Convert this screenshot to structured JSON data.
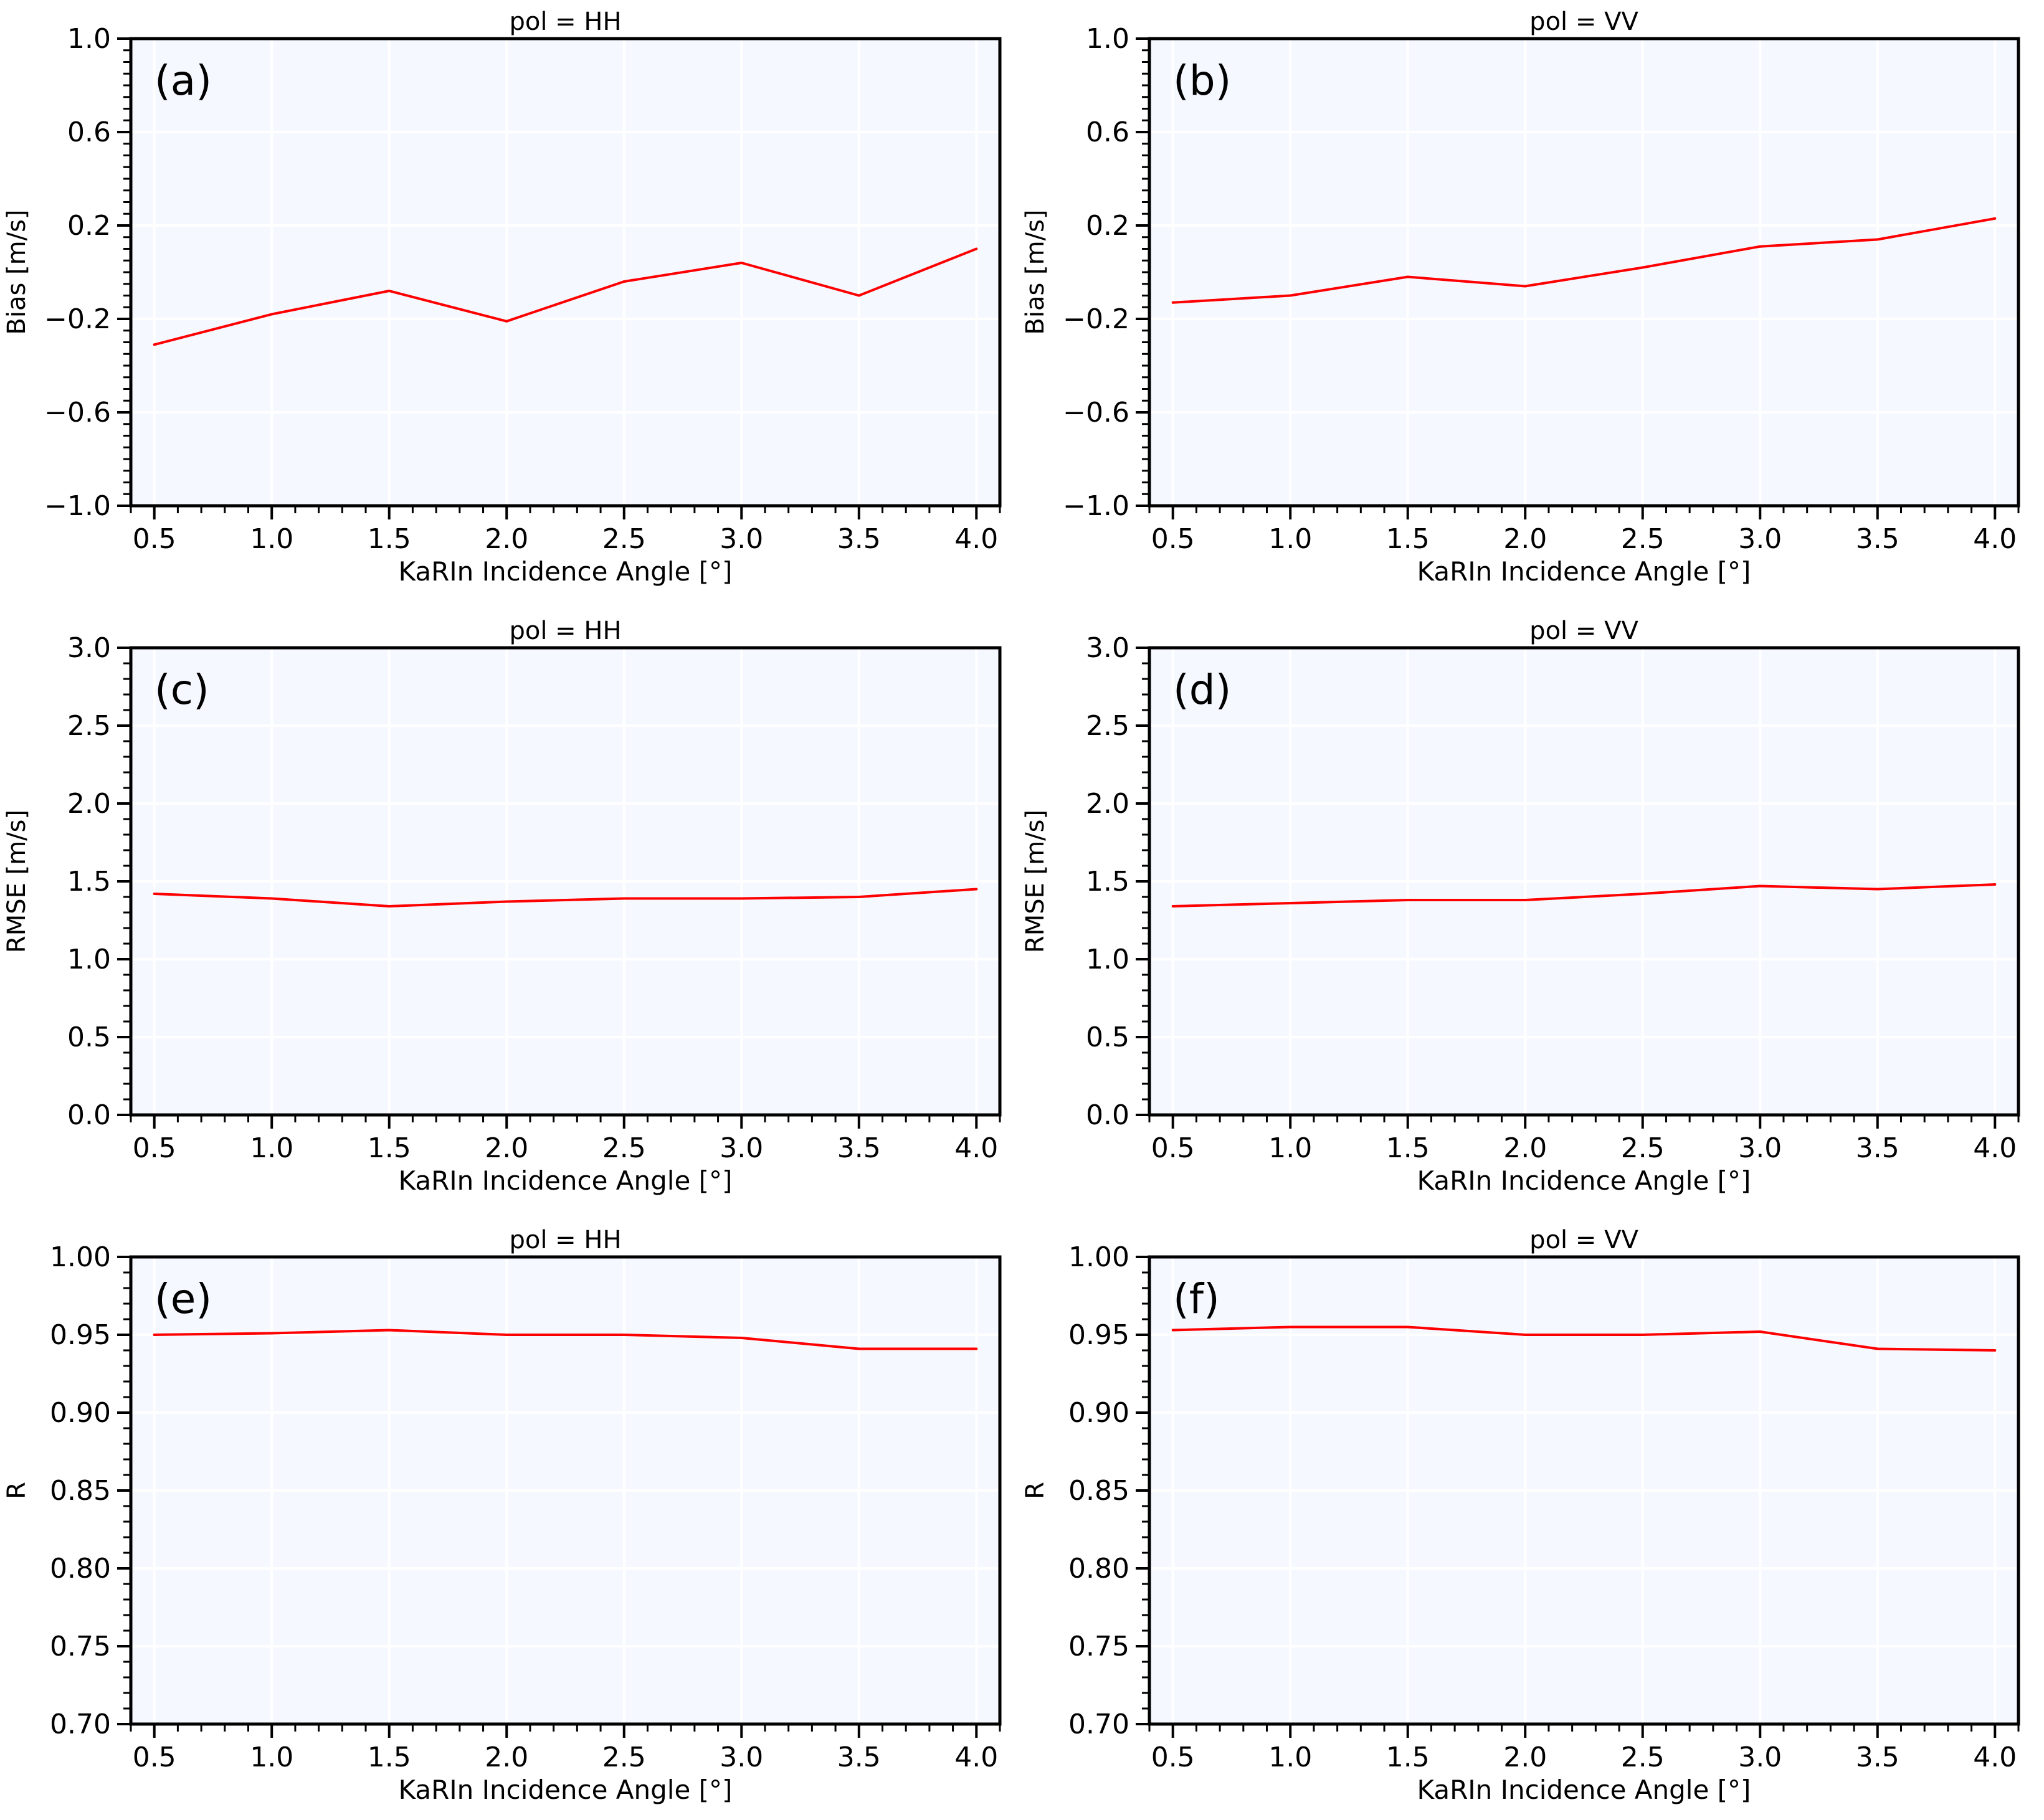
{
  "figure": {
    "background": "#ffffff",
    "axes_facecolor": "#f5f8ff",
    "grid_color": "#ffffff",
    "line_color": "#ff0000"
  },
  "chart_data": [
    {
      "type": "line",
      "panel": "(a)",
      "title": "pol = HH",
      "xlabel": "KaRIn Incidence Angle [°]",
      "ylabel": "Bias [m/s]",
      "xlim": [
        0.4,
        4.1
      ],
      "ylim": [
        -1.0,
        1.0
      ],
      "grid": true,
      "xticks": [
        0.5,
        1.0,
        1.5,
        2.0,
        2.5,
        3.0,
        3.5,
        4.0
      ],
      "xtick_labels": [
        "0.5",
        "1.0",
        "1.5",
        "2.0",
        "2.5",
        "3.0",
        "3.5",
        "4.0"
      ],
      "yticks": [
        -1.0,
        -0.6,
        -0.2,
        0.2,
        0.6,
        1.0
      ],
      "ytick_labels": [
        "−1.0",
        "−0.6",
        "−0.2",
        "0.2",
        "0.6",
        "1.0"
      ],
      "yminor_step": 0.05,
      "series": [
        {
          "color": "#ff0000",
          "x": [
            0.5,
            1.0,
            1.5,
            2.0,
            2.5,
            3.0,
            3.5,
            4.0
          ],
          "y": [
            -0.31,
            -0.18,
            -0.08,
            -0.21,
            -0.04,
            0.04,
            -0.1,
            0.1
          ]
        }
      ]
    },
    {
      "type": "line",
      "panel": "(b)",
      "title": "pol = VV",
      "xlabel": "KaRIn Incidence Angle [°]",
      "ylabel": "Bias [m/s]",
      "xlim": [
        0.4,
        4.1
      ],
      "ylim": [
        -1.0,
        1.0
      ],
      "grid": true,
      "xticks": [
        0.5,
        1.0,
        1.5,
        2.0,
        2.5,
        3.0,
        3.5,
        4.0
      ],
      "xtick_labels": [
        "0.5",
        "1.0",
        "1.5",
        "2.0",
        "2.5",
        "3.0",
        "3.5",
        "4.0"
      ],
      "yticks": [
        -1.0,
        -0.6,
        -0.2,
        0.2,
        0.6,
        1.0
      ],
      "ytick_labels": [
        "−1.0",
        "−0.6",
        "−0.2",
        "0.2",
        "0.6",
        "1.0"
      ],
      "yminor_step": 0.05,
      "series": [
        {
          "color": "#ff0000",
          "x": [
            0.5,
            1.0,
            1.5,
            2.0,
            2.5,
            3.0,
            3.5,
            4.0
          ],
          "y": [
            -0.13,
            -0.1,
            -0.02,
            -0.06,
            0.02,
            0.11,
            0.14,
            0.23
          ]
        }
      ]
    },
    {
      "type": "line",
      "panel": "(c)",
      "title": "pol = HH",
      "xlabel": "KaRIn Incidence Angle [°]",
      "ylabel": "RMSE [m/s]",
      "xlim": [
        0.4,
        4.1
      ],
      "ylim": [
        0.0,
        3.0
      ],
      "grid": true,
      "xticks": [
        0.5,
        1.0,
        1.5,
        2.0,
        2.5,
        3.0,
        3.5,
        4.0
      ],
      "xtick_labels": [
        "0.5",
        "1.0",
        "1.5",
        "2.0",
        "2.5",
        "3.0",
        "3.5",
        "4.0"
      ],
      "yticks": [
        0.0,
        0.5,
        1.0,
        1.5,
        2.0,
        2.5,
        3.0
      ],
      "ytick_labels": [
        "0.0",
        "0.5",
        "1.0",
        "1.5",
        "2.0",
        "2.5",
        "3.0"
      ],
      "yminor_step": 0.1,
      "series": [
        {
          "color": "#ff0000",
          "x": [
            0.5,
            1.0,
            1.5,
            2.0,
            2.5,
            3.0,
            3.5,
            4.0
          ],
          "y": [
            1.42,
            1.39,
            1.34,
            1.37,
            1.39,
            1.39,
            1.4,
            1.45
          ]
        }
      ]
    },
    {
      "type": "line",
      "panel": "(d)",
      "title": "pol = VV",
      "xlabel": "KaRIn Incidence Angle [°]",
      "ylabel": "RMSE [m/s]",
      "xlim": [
        0.4,
        4.1
      ],
      "ylim": [
        0.0,
        3.0
      ],
      "grid": true,
      "xticks": [
        0.5,
        1.0,
        1.5,
        2.0,
        2.5,
        3.0,
        3.5,
        4.0
      ],
      "xtick_labels": [
        "0.5",
        "1.0",
        "1.5",
        "2.0",
        "2.5",
        "3.0",
        "3.5",
        "4.0"
      ],
      "yticks": [
        0.0,
        0.5,
        1.0,
        1.5,
        2.0,
        2.5,
        3.0
      ],
      "ytick_labels": [
        "0.0",
        "0.5",
        "1.0",
        "1.5",
        "2.0",
        "2.5",
        "3.0"
      ],
      "yminor_step": 0.1,
      "series": [
        {
          "color": "#ff0000",
          "x": [
            0.5,
            1.0,
            1.5,
            2.0,
            2.5,
            3.0,
            3.5,
            4.0
          ],
          "y": [
            1.34,
            1.36,
            1.38,
            1.38,
            1.42,
            1.47,
            1.45,
            1.48
          ]
        }
      ]
    },
    {
      "type": "line",
      "panel": "(e)",
      "title": "pol = HH",
      "xlabel": "KaRIn Incidence Angle [°]",
      "ylabel": "R",
      "xlim": [
        0.4,
        4.1
      ],
      "ylim": [
        0.7,
        1.0
      ],
      "grid": true,
      "xticks": [
        0.5,
        1.0,
        1.5,
        2.0,
        2.5,
        3.0,
        3.5,
        4.0
      ],
      "xtick_labels": [
        "0.5",
        "1.0",
        "1.5",
        "2.0",
        "2.5",
        "3.0",
        "3.5",
        "4.0"
      ],
      "yticks": [
        0.7,
        0.75,
        0.8,
        0.85,
        0.9,
        0.95,
        1.0
      ],
      "ytick_labels": [
        "0.70",
        "0.75",
        "0.80",
        "0.85",
        "0.90",
        "0.95",
        "1.00"
      ],
      "yminor_step": 0.01,
      "series": [
        {
          "color": "#ff0000",
          "x": [
            0.5,
            1.0,
            1.5,
            2.0,
            2.5,
            3.0,
            3.5,
            4.0
          ],
          "y": [
            0.95,
            0.951,
            0.953,
            0.95,
            0.95,
            0.948,
            0.941,
            0.941
          ]
        }
      ]
    },
    {
      "type": "line",
      "panel": "(f)",
      "title": "pol = VV",
      "xlabel": "KaRIn Incidence Angle [°]",
      "ylabel": "R",
      "xlim": [
        0.4,
        4.1
      ],
      "ylim": [
        0.7,
        1.0
      ],
      "grid": true,
      "xticks": [
        0.5,
        1.0,
        1.5,
        2.0,
        2.5,
        3.0,
        3.5,
        4.0
      ],
      "xtick_labels": [
        "0.5",
        "1.0",
        "1.5",
        "2.0",
        "2.5",
        "3.0",
        "3.5",
        "4.0"
      ],
      "yticks": [
        0.7,
        0.75,
        0.8,
        0.85,
        0.9,
        0.95,
        1.0
      ],
      "ytick_labels": [
        "0.70",
        "0.75",
        "0.80",
        "0.85",
        "0.90",
        "0.95",
        "1.00"
      ],
      "yminor_step": 0.01,
      "series": [
        {
          "color": "#ff0000",
          "x": [
            0.5,
            1.0,
            1.5,
            2.0,
            2.5,
            3.0,
            3.5,
            4.0
          ],
          "y": [
            0.953,
            0.955,
            0.955,
            0.95,
            0.95,
            0.952,
            0.941,
            0.94
          ]
        }
      ]
    }
  ]
}
